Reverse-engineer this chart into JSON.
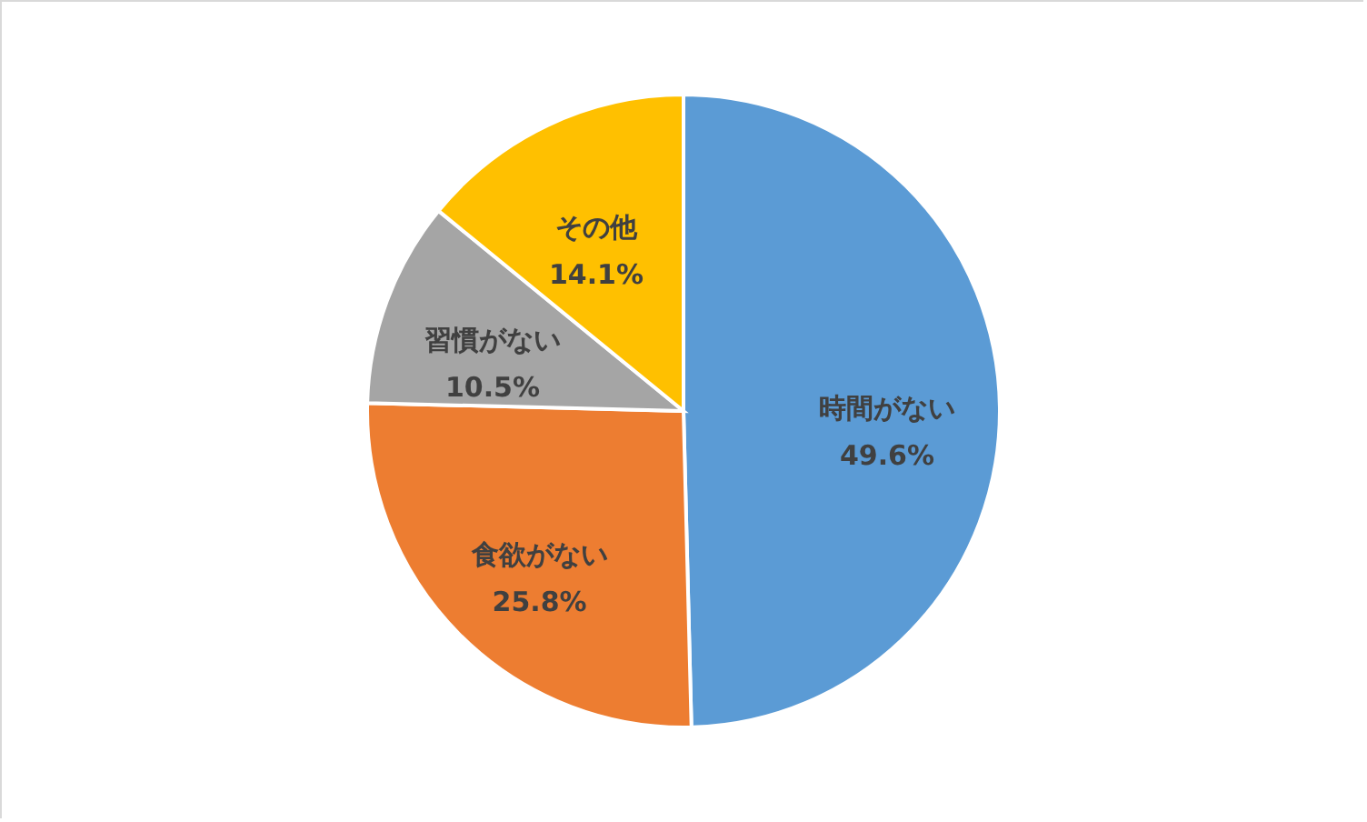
{
  "chart_data": {
    "type": "pie",
    "categories": [
      "時間がない",
      "食欲がない",
      "習慣がない",
      "その他"
    ],
    "values": [
      49.6,
      25.8,
      10.5,
      14.1
    ],
    "colors": [
      "#5b9bd5",
      "#ed7d31",
      "#a5a5a5",
      "#ffc000"
    ],
    "value_labels": [
      "49.6%",
      "25.8%",
      "10.5%",
      "14.1%"
    ]
  }
}
